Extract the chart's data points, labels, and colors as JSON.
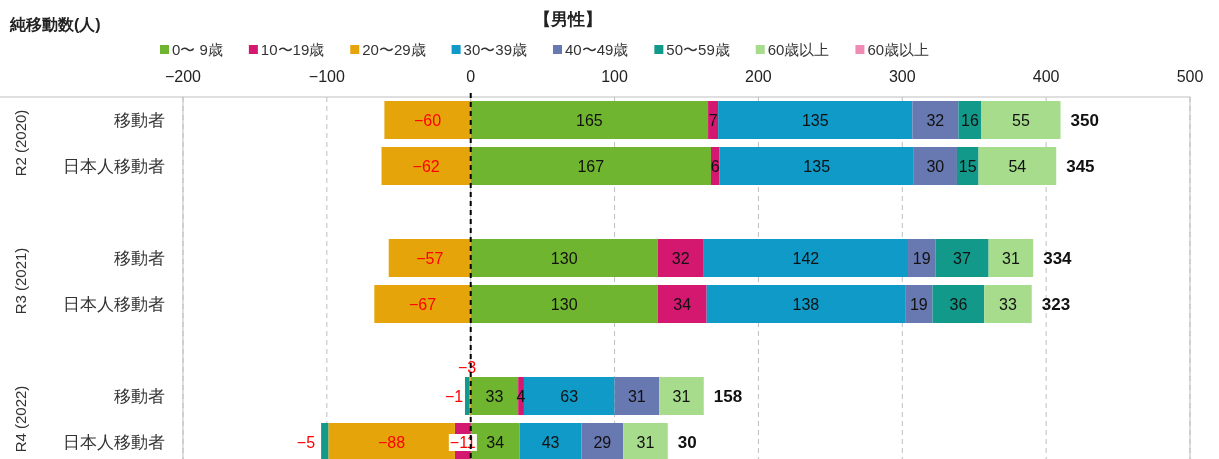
{
  "chart_data": {
    "type": "bar",
    "orientation": "horizontal",
    "stacked": true,
    "title": "【男性】",
    "xlabel": "純移動数(人)",
    "categories": [
      "移動者",
      "日本人移動者",
      null,
      "移動者",
      "日本人移動者",
      null,
      "移動者",
      "日本人移動者"
    ],
    "series": [
      {
        "name": "0〜 9歳",
        "color": "#6fb52f",
        "values": [
          165,
          167,
          null,
          130,
          130,
          null,
          33,
          34
        ]
      },
      {
        "name": "10〜19歳",
        "color": "#d4176f",
        "values": [
          7,
          6,
          null,
          32,
          34,
          null,
          4,
          -11
        ]
      },
      {
        "name": "20〜29歳",
        "color": "#e5a50a",
        "values": [
          -60,
          -62,
          null,
          -57,
          -67,
          null,
          -1,
          -88
        ]
      },
      {
        "name": "30〜39歳",
        "color": "#0f9ac8",
        "values": [
          135,
          135,
          null,
          142,
          138,
          null,
          63,
          43
        ]
      },
      {
        "name": "40〜49歳",
        "color": "#6878b0",
        "values": [
          32,
          30,
          null,
          19,
          19,
          null,
          31,
          29
        ]
      },
      {
        "name": "50〜59歳",
        "color": "#13998a",
        "values": [
          16,
          15,
          null,
          37,
          36,
          null,
          -3,
          -5
        ]
      },
      {
        "name": "60歳以上",
        "color": "#a6dc8c",
        "values": [
          55,
          54,
          null,
          31,
          33,
          null,
          31,
          31
        ]
      },
      {
        "name": "60歳以上",
        "color": "#f08cb4",
        "values": [
          null,
          null,
          null,
          null,
          null,
          null,
          null,
          null
        ]
      }
    ],
    "totals": [
      "350",
      "345",
      null,
      "334",
      "323",
      null,
      "158",
      "30"
    ],
    "annotations": [
      "R2 (2020)",
      "R3 (2021)",
      "R4 (2022)"
    ],
    "xlim": [
      -200,
      500
    ],
    "xticks": [
      -200,
      -100,
      0,
      100,
      200,
      300,
      400,
      500
    ],
    "grid": "x",
    "legend": "top",
    "data_labels": true,
    "ref_lines": [
      {
        "axis": "x",
        "value": 0,
        "color": "#000000",
        "line_style": "dashed"
      }
    ]
  }
}
